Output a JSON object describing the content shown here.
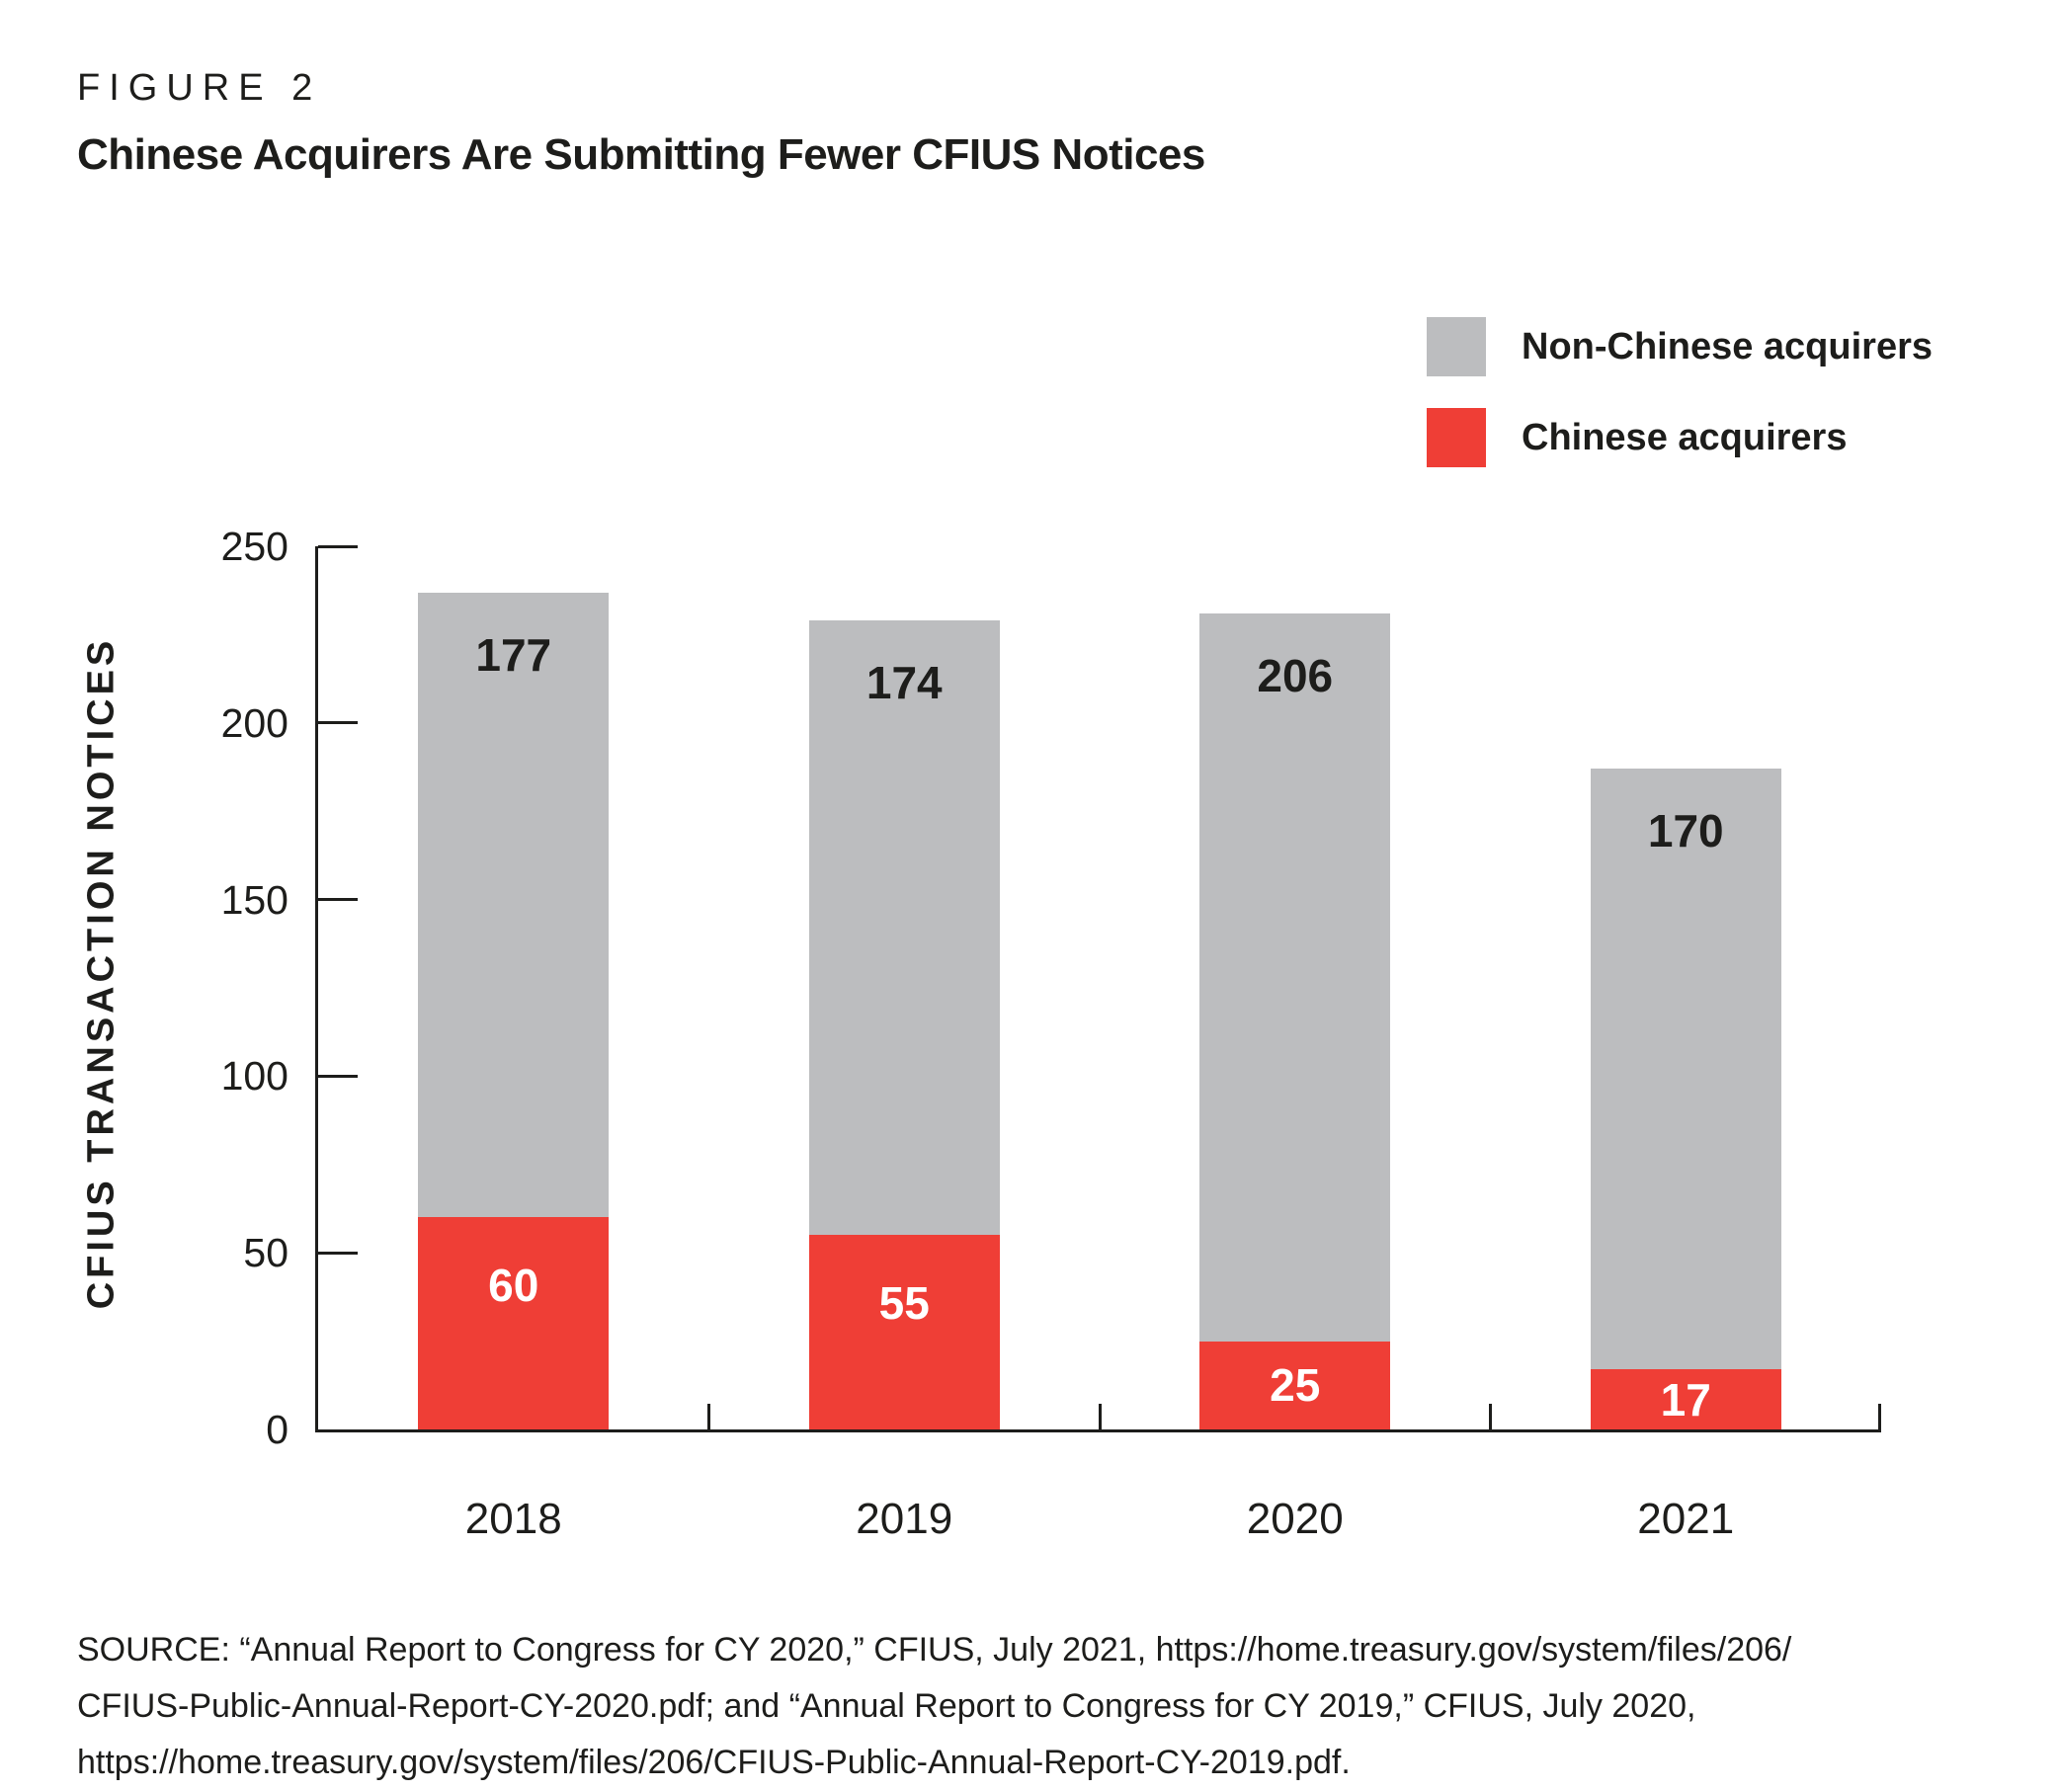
{
  "figure": {
    "label": "FIGURE 2",
    "title": "Chinese Acquirers Are Submitting Fewer CFIUS Notices"
  },
  "colors": {
    "chinese_red": "#EF3E36",
    "non_chinese_gray": "#BCBDBF",
    "ink_black": "#1D1D1B",
    "label_on_red": "#FFFFFF"
  },
  "legend": [
    {
      "key": "non-chinese",
      "label": "Non-Chinese acquirers",
      "color": "#BCBDBF"
    },
    {
      "key": "chinese",
      "label": "Chinese acquirers",
      "color": "#EF3E36"
    }
  ],
  "chart_data": {
    "type": "bar",
    "stacked": true,
    "title": "Chinese Acquirers Are Submitting Fewer CFIUS Notices",
    "categories": [
      "2018",
      "2019",
      "2020",
      "2021"
    ],
    "series": [
      {
        "name": "Chinese acquirers",
        "color": "#EF3E36",
        "label_color": "#FFFFFF",
        "values": [
          60,
          55,
          25,
          17
        ]
      },
      {
        "name": "Non-Chinese acquirers",
        "color": "#BCBDBF",
        "label_color": "#1D1D1B",
        "values": [
          177,
          174,
          206,
          170
        ]
      }
    ],
    "totals": [
      237,
      229,
      231,
      187
    ],
    "xlabel": "",
    "ylabel": "CFIUS TRANSACTION NOTICES",
    "ylim": [
      0,
      250
    ],
    "yticks": [
      0,
      50,
      100,
      150,
      200,
      250
    ],
    "grid": false,
    "bar_labels": true,
    "legend_position": "top-right",
    "tick_style": "inward"
  },
  "source": {
    "lines": [
      "SOURCE: “Annual Report to Congress for CY 2020,” CFIUS, July 2021, https://home.treasury.gov/system/files/206/",
      "CFIUS-Public-Annual-Report-CY-2020.pdf; and “Annual Report to Congress for CY 2019,” CFIUS, July 2020,",
      "https://home.treasury.gov/system/files/206/CFIUS-Public-Annual-Report-CY-2019.pdf."
    ]
  }
}
